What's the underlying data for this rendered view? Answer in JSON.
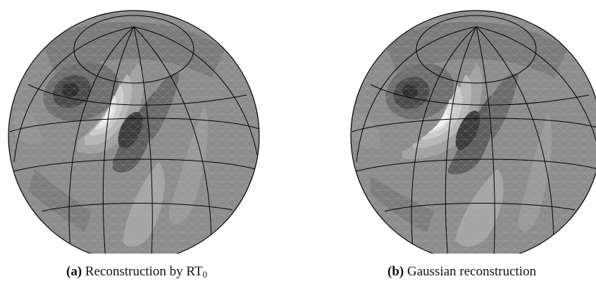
{
  "figures": [
    {
      "label": "(a)",
      "caption": "Reconstruction by RT",
      "caption_subscript": "0"
    },
    {
      "label": "(b)",
      "caption": "Gaussian reconstruction"
    }
  ]
}
